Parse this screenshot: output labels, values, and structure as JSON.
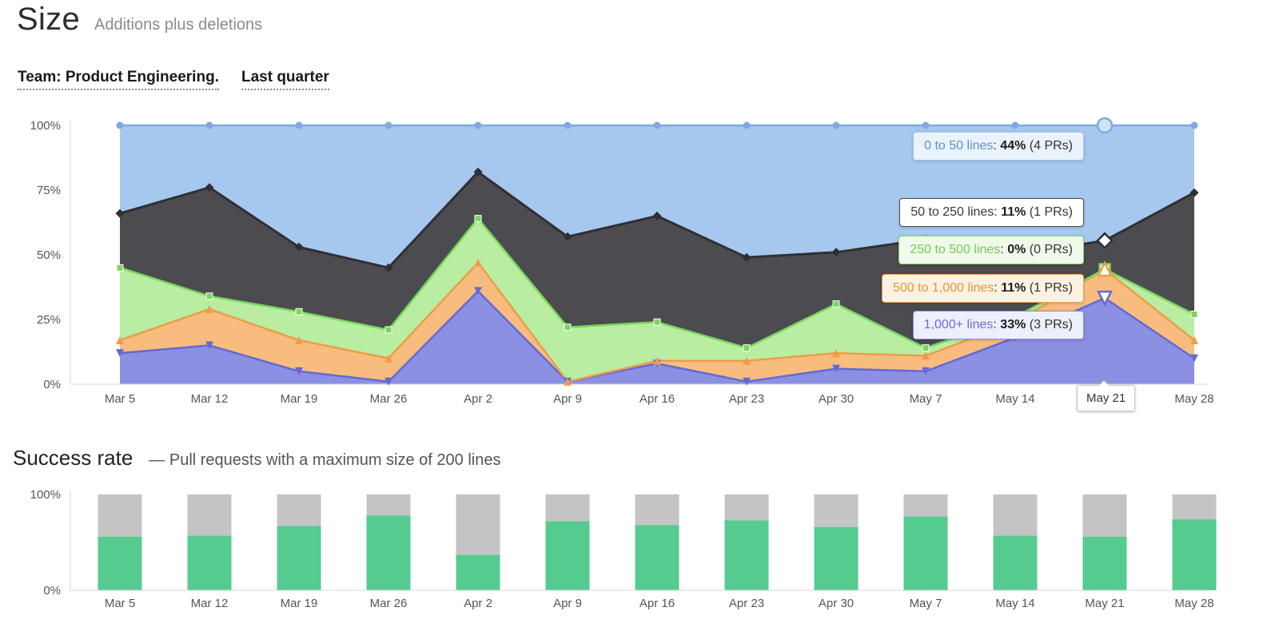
{
  "size_section": {
    "title": "Size",
    "subtitle": "Additions plus deletions",
    "filters": [
      {
        "label": "Team: Product Engineering."
      },
      {
        "label": "Last quarter"
      }
    ]
  },
  "success_section": {
    "title": "Success rate",
    "subtitle": "— Pull requests with a maximum size of 200 lines"
  },
  "highlight": {
    "date_label": "May 21"
  },
  "tooltips": [
    {
      "label": "0 to 50 lines",
      "sep": ": ",
      "value": "44%",
      "suffix": " (4 PRs)",
      "bg": "#eaf2fb",
      "border": "#a8c5e8",
      "label_color": "#5e92ce"
    },
    {
      "label": "50 to 250 lines",
      "sep": ": ",
      "value": "11%",
      "suffix": " (1 PRs)",
      "bg": "#ffffff",
      "border": "#4a4a4e",
      "label_color": "#3a3a3e"
    },
    {
      "label": "250 to 500 lines",
      "sep": ": ",
      "value": "0%",
      "suffix": " (0 PRs)",
      "bg": "#f0faea",
      "border": "#85d765",
      "label_color": "#76cb54"
    },
    {
      "label": "500 to 1,000 lines",
      "sep": ": ",
      "value": "11%",
      "suffix": " (1 PRs)",
      "bg": "#fdf1e2",
      "border": "#eda154",
      "label_color": "#e7953a"
    },
    {
      "label": "1,000+ lines",
      "sep": ": ",
      "value": "33%",
      "suffix": " (3 PRs)",
      "bg": "#edeffc",
      "border": "#8a8fe1",
      "label_color": "#6a70d6"
    }
  ],
  "chart_data": [
    {
      "type": "area",
      "stacked": true,
      "title": "Size",
      "subtitle": "Additions plus deletions",
      "unit": "percent of pull requests",
      "categories": [
        "Mar 5",
        "Mar 12",
        "Mar 19",
        "Mar 26",
        "Apr 2",
        "Apr 9",
        "Apr 16",
        "Apr 23",
        "Apr 30",
        "May 7",
        "May 14",
        "May 21",
        "May 28"
      ],
      "ylim": [
        0,
        100
      ],
      "yticks": [
        {
          "value": 0,
          "label": "0%"
        },
        {
          "value": 25,
          "label": "25%"
        },
        {
          "value": 50,
          "label": "50%"
        },
        {
          "value": 75,
          "label": "75%"
        },
        {
          "value": 100,
          "label": "100%"
        }
      ],
      "axis_color": "#d9d9d9",
      "tick_color": "#555555",
      "legend": "none",
      "grid": false,
      "highlight_index": 11,
      "series": [
        {
          "name": "1,000+ lines",
          "color": "#8c90e2",
          "line": "#6469d3",
          "marker": "triangle-down",
          "values": [
            12,
            15,
            5,
            1,
            36,
            1,
            8,
            1,
            6,
            5,
            18,
            33.3,
            10
          ]
        },
        {
          "name": "500 to 1,000 lines",
          "color": "#f8bd7e",
          "line": "#ed9d48",
          "marker": "triangle-up",
          "values": [
            5,
            14,
            12,
            9,
            11,
            0,
            1,
            8,
            6,
            6,
            6,
            11.1,
            7
          ]
        },
        {
          "name": "250 to 500 lines",
          "color": "#b8eda2",
          "line": "#7bd65c",
          "marker": "square",
          "values": [
            28,
            5,
            11,
            11,
            17,
            21,
            15,
            5,
            19,
            3,
            2,
            0,
            10
          ]
        },
        {
          "name": "50 to 250 lines",
          "color": "#4b4b50",
          "line": "#2f2f34",
          "line_width": 3,
          "marker": "diamond",
          "values": [
            21,
            42,
            25,
            24,
            18,
            35,
            41,
            35,
            20,
            42,
            24,
            11.1,
            47
          ]
        },
        {
          "name": "0 to 50 lines",
          "color": "#a7c8ee",
          "line": "#7fa9df",
          "marker": "circle",
          "values": [
            34,
            24,
            47,
            55,
            18,
            43,
            35,
            51,
            49,
            44,
            50,
            44.5,
            26
          ]
        }
      ]
    },
    {
      "type": "bar",
      "stacked": true,
      "title": "Success rate",
      "subtitle": "— Pull requests with a maximum size of 200 lines",
      "categories": [
        "Mar 5",
        "Mar 12",
        "Mar 19",
        "Mar 26",
        "Apr 2",
        "Apr 9",
        "Apr 16",
        "Apr 23",
        "Apr 30",
        "May 7",
        "May 14",
        "May 21",
        "May 28"
      ],
      "ylim": [
        0,
        100
      ],
      "yticks": [
        {
          "value": 0,
          "label": "0%"
        },
        {
          "value": 100,
          "label": "100%"
        }
      ],
      "axis_color": "#d9d9d9",
      "tick_color": "#555555",
      "legend": "none",
      "grid": false,
      "series": [
        {
          "name": "success",
          "color": "#55cb8f",
          "values": [
            56,
            57,
            67,
            78,
            37,
            72,
            68,
            73,
            66,
            77,
            57,
            56,
            74
          ]
        },
        {
          "name": "remainder",
          "color": "#c4c4c4",
          "values": [
            44,
            43,
            33,
            22,
            63,
            28,
            32,
            27,
            34,
            23,
            43,
            44,
            26
          ]
        }
      ]
    }
  ]
}
